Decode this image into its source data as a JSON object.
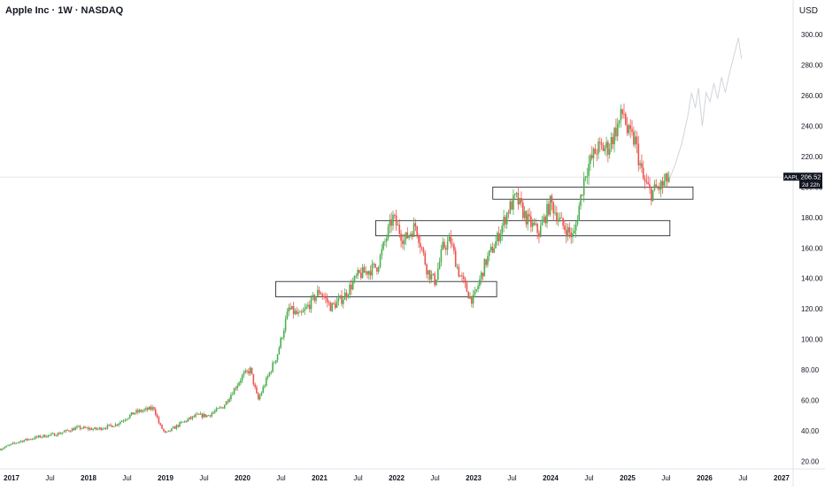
{
  "header": {
    "title": "Apple Inc · 1W · NASDAQ",
    "currency": "USD"
  },
  "price_badge": {
    "symbol": "AAPL",
    "price": "206.52",
    "countdown": "2d 22h"
  },
  "colors": {
    "up": "#26a69a",
    "up_light": "#4caf50",
    "down": "#ef5350",
    "projection": "#d1d4dc",
    "axis_text": "#131722",
    "badge_bg": "#131722"
  },
  "chart_data": {
    "type": "candlestick",
    "symbol": "AAPL",
    "interval": "1W",
    "exchange": "NASDAQ",
    "ylim": [
      15,
      310
    ],
    "y_ticks": [
      "20.00",
      "40.00",
      "60.00",
      "80.00",
      "100.00",
      "120.00",
      "140.00",
      "160.00",
      "180.00",
      "200.00",
      "220.00",
      "240.00",
      "260.00",
      "280.00",
      "300.00"
    ],
    "x_ticks": [
      {
        "label": "2017",
        "t": 2017.0
      },
      {
        "label": "Jul",
        "t": 2017.5
      },
      {
        "label": "2018",
        "t": 2018.0
      },
      {
        "label": "Jul",
        "t": 2018.5
      },
      {
        "label": "2019",
        "t": 2019.0
      },
      {
        "label": "Jul",
        "t": 2019.5
      },
      {
        "label": "2020",
        "t": 2020.0
      },
      {
        "label": "Jul",
        "t": 2020.5
      },
      {
        "label": "2021",
        "t": 2021.0
      },
      {
        "label": "Jul",
        "t": 2021.5
      },
      {
        "label": "2022",
        "t": 2022.0
      },
      {
        "label": "Jul",
        "t": 2022.5
      },
      {
        "label": "2023",
        "t": 2023.0
      },
      {
        "label": "Jul",
        "t": 2023.5
      },
      {
        "label": "2024",
        "t": 2024.0
      },
      {
        "label": "Jul",
        "t": 2024.5
      },
      {
        "label": "2025",
        "t": 2025.0
      },
      {
        "label": "Jul",
        "t": 2025.5
      },
      {
        "label": "2026",
        "t": 2026.0
      },
      {
        "label": "Jul",
        "t": 2026.5
      },
      {
        "label": "2027",
        "t": 2027.0
      }
    ],
    "x_range": [
      2016.85,
      2027.15
    ],
    "price_path": [
      [
        2016.85,
        28
      ],
      [
        2017.1,
        33
      ],
      [
        2017.35,
        36
      ],
      [
        2017.6,
        38
      ],
      [
        2017.85,
        42
      ],
      [
        2018.1,
        41
      ],
      [
        2018.35,
        44
      ],
      [
        2018.6,
        52
      ],
      [
        2018.85,
        55
      ],
      [
        2018.92,
        44
      ],
      [
        2019.0,
        38
      ],
      [
        2019.2,
        45
      ],
      [
        2019.4,
        50
      ],
      [
        2019.55,
        50
      ],
      [
        2019.75,
        56
      ],
      [
        2020.0,
        76
      ],
      [
        2020.1,
        80
      ],
      [
        2020.2,
        60
      ],
      [
        2020.45,
        90
      ],
      [
        2020.6,
        120
      ],
      [
        2020.75,
        115
      ],
      [
        2021.0,
        132
      ],
      [
        2021.15,
        121
      ],
      [
        2021.3,
        127
      ],
      [
        2021.5,
        142
      ],
      [
        2021.75,
        148
      ],
      [
        2021.95,
        180
      ],
      [
        2022.1,
        165
      ],
      [
        2022.25,
        175
      ],
      [
        2022.4,
        145
      ],
      [
        2022.5,
        138
      ],
      [
        2022.6,
        160
      ],
      [
        2022.7,
        165
      ],
      [
        2022.8,
        145
      ],
      [
        2022.95,
        128
      ],
      [
        2023.0,
        126
      ],
      [
        2023.15,
        150
      ],
      [
        2023.3,
        165
      ],
      [
        2023.45,
        185
      ],
      [
        2023.55,
        193
      ],
      [
        2023.7,
        178
      ],
      [
        2023.85,
        170
      ],
      [
        2024.0,
        190
      ],
      [
        2024.15,
        175
      ],
      [
        2024.3,
        167
      ],
      [
        2024.45,
        210
      ],
      [
        2024.6,
        225
      ],
      [
        2024.75,
        226
      ],
      [
        2024.95,
        250
      ],
      [
        2025.0,
        235
      ],
      [
        2025.1,
        230
      ],
      [
        2025.2,
        205
      ],
      [
        2025.3,
        196
      ],
      [
        2025.45,
        201
      ],
      [
        2025.55,
        206.52
      ]
    ],
    "candles_per_year": 48,
    "last_price": 206.52,
    "zones": [
      {
        "t0": 2020.43,
        "t1": 2023.3,
        "low": 128,
        "high": 138
      },
      {
        "t0": 2021.73,
        "t1": 2025.55,
        "low": 168,
        "high": 178
      },
      {
        "t0": 2023.25,
        "t1": 2025.85,
        "low": 192,
        "high": 200
      }
    ],
    "projection": [
      [
        2025.55,
        206
      ],
      [
        2025.62,
        215
      ],
      [
        2025.7,
        228
      ],
      [
        2025.78,
        246
      ],
      [
        2025.83,
        262
      ],
      [
        2025.88,
        252
      ],
      [
        2025.92,
        265
      ],
      [
        2025.97,
        240
      ],
      [
        2026.02,
        262
      ],
      [
        2026.07,
        256
      ],
      [
        2026.12,
        268
      ],
      [
        2026.17,
        258
      ],
      [
        2026.22,
        272
      ],
      [
        2026.27,
        262
      ],
      [
        2026.32,
        274
      ],
      [
        2026.4,
        290
      ],
      [
        2026.44,
        298
      ],
      [
        2026.48,
        284
      ]
    ]
  }
}
